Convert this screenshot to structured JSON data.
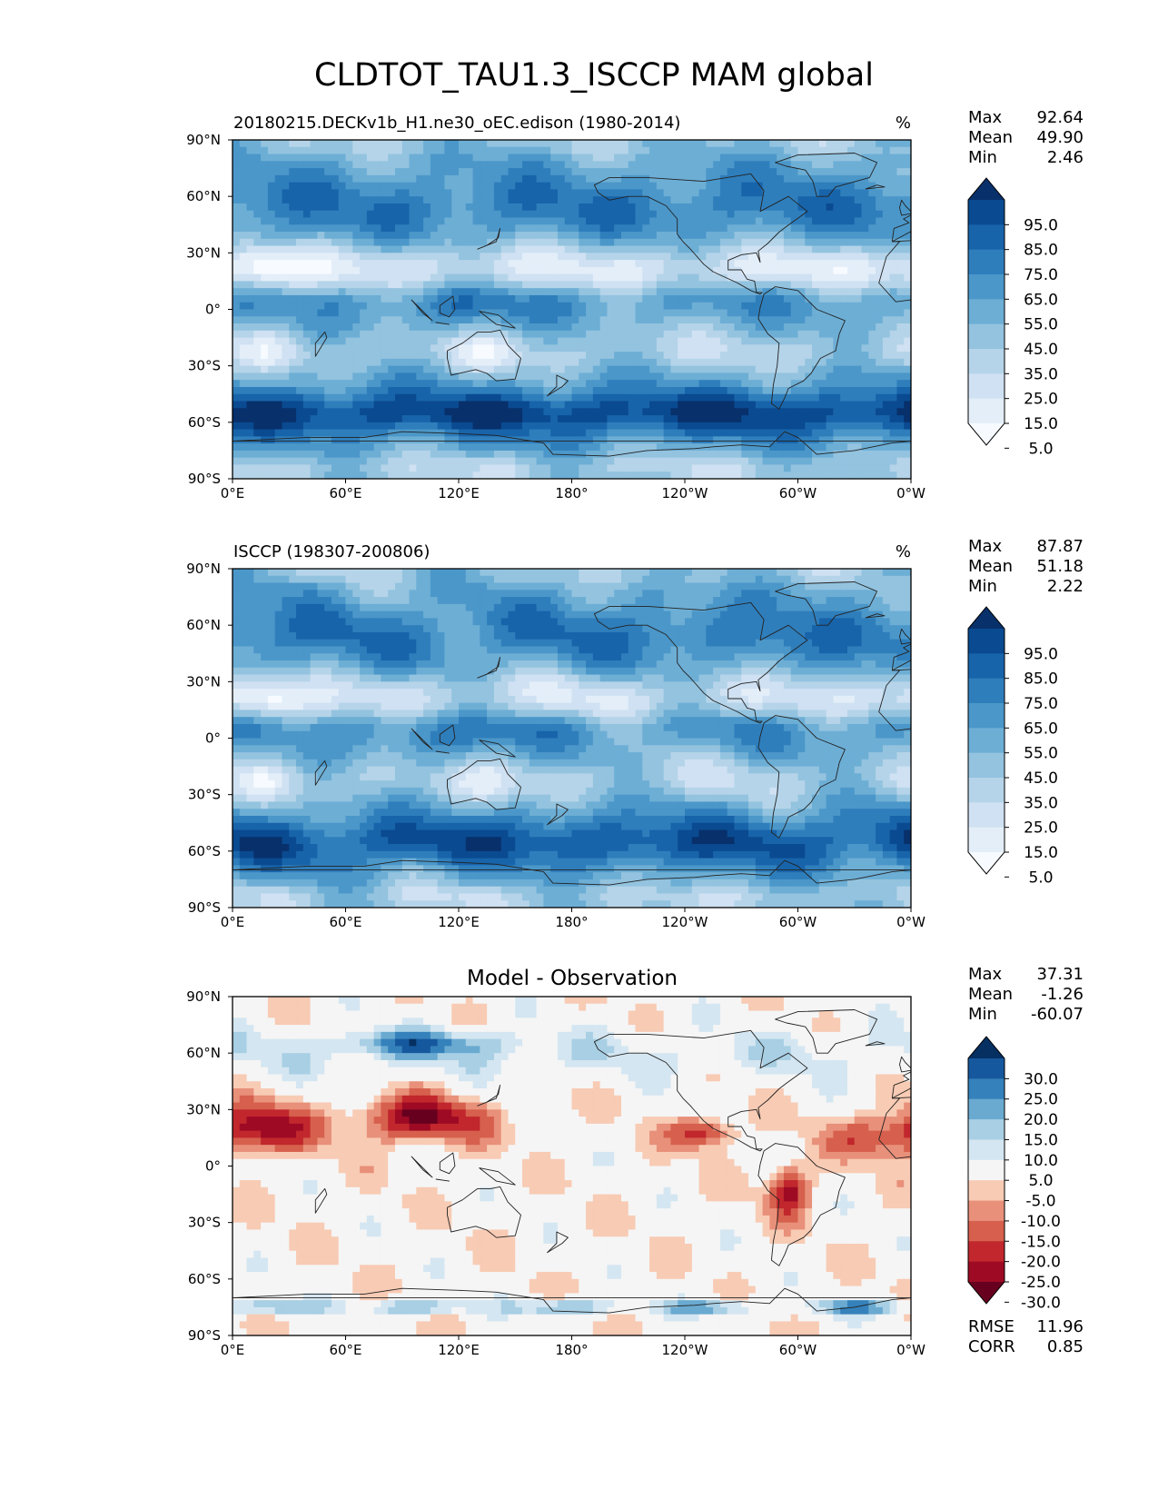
{
  "figure": {
    "title": "CLDTOT_TAU1.3_ISCCP MAM global"
  },
  "x_ticks": [
    "0°E",
    "60°E",
    "120°E",
    "180°",
    "120°W",
    "60°W",
    "0°W"
  ],
  "y_ticks": [
    "90°N",
    "60°N",
    "30°N",
    "0°",
    "30°S",
    "60°S",
    "90°S"
  ],
  "chart_data": [
    {
      "type": "heatmap",
      "id": "model",
      "title": "20180215.DECKv1b_H1.ne30_oEC.edison (1980-2014)",
      "units": "%",
      "xlim": [
        0,
        360
      ],
      "ylim": [
        -90,
        90
      ],
      "stats": {
        "Max": "92.64",
        "Mean": "49.90",
        "Min": "2.46"
      },
      "colorbar": {
        "levels": [
          5,
          15,
          25,
          35,
          45,
          55,
          65,
          75,
          85,
          95
        ],
        "tick_labels": [
          "95.0",
          "85.0",
          "75.0",
          "65.0",
          "55.0",
          "45.0",
          "35.0",
          "25.0",
          "15.0",
          "5.0"
        ],
        "colors": [
          "#f7fbff",
          "#e3eef9",
          "#cfe1f2",
          "#b5d4e9",
          "#93c3df",
          "#6daed5",
          "#4b97c9",
          "#2f7ebc",
          "#1864aa",
          "#0a4a90",
          "#08306b"
        ],
        "extend": "both"
      }
    },
    {
      "type": "heatmap",
      "id": "obs",
      "title": "ISCCP (198307-200806)",
      "units": "%",
      "xlim": [
        0,
        360
      ],
      "ylim": [
        -90,
        90
      ],
      "stats": {
        "Max": "87.87",
        "Mean": "51.18",
        "Min": "2.22"
      },
      "colorbar": {
        "levels": [
          5,
          15,
          25,
          35,
          45,
          55,
          65,
          75,
          85,
          95
        ],
        "tick_labels": [
          "95.0",
          "85.0",
          "75.0",
          "65.0",
          "55.0",
          "45.0",
          "35.0",
          "25.0",
          "15.0",
          "5.0"
        ],
        "colors": [
          "#f7fbff",
          "#e3eef9",
          "#cfe1f2",
          "#b5d4e9",
          "#93c3df",
          "#6daed5",
          "#4b97c9",
          "#2f7ebc",
          "#1864aa",
          "#0a4a90",
          "#08306b"
        ],
        "extend": "both"
      }
    },
    {
      "type": "heatmap",
      "id": "diff",
      "title": "Model - Observation",
      "xlim": [
        0,
        360
      ],
      "ylim": [
        -90,
        90
      ],
      "stats": {
        "Max": "37.31",
        "Mean": "-1.26",
        "Min": "-60.07"
      },
      "metrics": {
        "RMSE": "11.96",
        "CORR": "0.85"
      },
      "colorbar": {
        "levels": [
          -30,
          -25,
          -20,
          -15,
          -10,
          -5,
          5,
          10,
          15,
          20,
          25,
          30
        ],
        "tick_labels": [
          "30.0",
          "25.0",
          "20.0",
          "15.0",
          "10.0",
          "5.0",
          "-5.0",
          "-10.0",
          "-15.0",
          "-20.0",
          "-25.0",
          "-30.0"
        ],
        "colors": [
          "#67001f",
          "#9e0a24",
          "#c1272d",
          "#d6604d",
          "#e8907a",
          "#f8cbb4",
          "#f5f5f5",
          "#d4e6f1",
          "#a8cfe4",
          "#6aaad1",
          "#3581bb",
          "#16589d",
          "#053061"
        ],
        "extend": "both"
      }
    }
  ]
}
